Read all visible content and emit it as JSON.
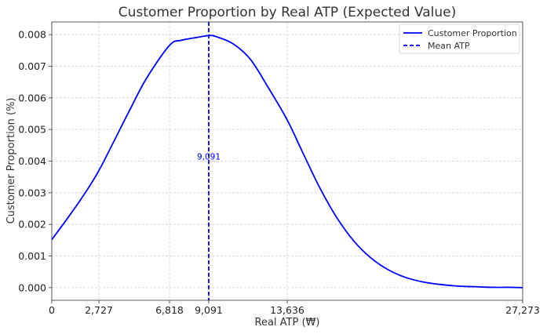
{
  "chart_data": {
    "type": "line",
    "title": "Customer Proportion by Real ATP (Expected Value)",
    "xlabel": "Real ATP (₩)",
    "ylabel": "Customer Proportion (%)",
    "xlim": [
      0,
      27273
    ],
    "ylim": [
      -0.0004,
      0.0084
    ],
    "x_ticks": [
      0,
      2727,
      6818,
      9091,
      13636,
      27273
    ],
    "x_tick_labels": [
      "0",
      "2,727",
      "6,818",
      "9,091",
      "13,636",
      "27,273"
    ],
    "y_ticks": [
      0.0,
      0.001,
      0.002,
      0.003,
      0.004,
      0.005,
      0.006,
      0.007,
      0.008
    ],
    "y_tick_labels": [
      "0.000",
      "0.001",
      "0.002",
      "0.003",
      "0.004",
      "0.005",
      "0.006",
      "0.007",
      "0.008"
    ],
    "grid": true,
    "legend_position": "top-right",
    "series": [
      {
        "name": "Customer Proportion",
        "color": "#0000ff",
        "style": "solid",
        "x": [
          0,
          1000,
          2000,
          2727,
          3500,
          4500,
          5500,
          6818,
          7500,
          8500,
          9091,
          9500,
          10500,
          11500,
          12500,
          13636,
          14500,
          15500,
          16500,
          17500,
          18500,
          19500,
          20500,
          21500,
          22500,
          23500,
          24500,
          25500,
          26500,
          27273
        ],
        "y": [
          0.00152,
          0.00226,
          0.00305,
          0.0037,
          0.00452,
          0.0056,
          0.00663,
          0.00766,
          0.00782,
          0.00792,
          0.00797,
          0.00794,
          0.00771,
          0.00722,
          0.00636,
          0.0053,
          0.00431,
          0.00318,
          0.00222,
          0.00147,
          0.00093,
          0.00056,
          0.00032,
          0.00018,
          0.0001,
          5e-05,
          3e-05,
          1e-05,
          1e-05,
          0.0
        ]
      }
    ],
    "reference_line": {
      "name": "Mean ATP",
      "x": 9091,
      "color": "#0000ff",
      "style": "dashed",
      "label": "9,091",
      "label_y": 0.00405
    }
  }
}
